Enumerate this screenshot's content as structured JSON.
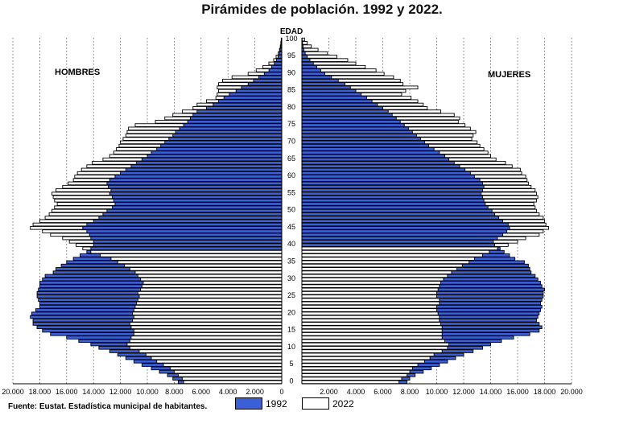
{
  "title": "Pirámides de población. 1992 y 2022.",
  "source": "Fuente: Eustat. Estadística municipal de habitantes.",
  "colors": {
    "series_1992": "#3a5fd6",
    "series_2022": "#ffffff",
    "edge": "#000000",
    "grid": "#555555"
  },
  "chart_data": {
    "type": "bar",
    "orientation": "horizontal-pyramid",
    "title": "Pirámides de población. 1992 y 2022.",
    "age_label": "EDAD",
    "left_label": "HOMBRES",
    "right_label": "MUJERES",
    "ages": [
      0,
      1,
      2,
      3,
      4,
      5,
      6,
      7,
      8,
      9,
      10,
      11,
      12,
      13,
      14,
      15,
      16,
      17,
      18,
      19,
      20,
      21,
      22,
      23,
      24,
      25,
      26,
      27,
      28,
      29,
      30,
      31,
      32,
      33,
      34,
      35,
      36,
      37,
      38,
      39,
      40,
      41,
      42,
      43,
      44,
      45,
      46,
      47,
      48,
      49,
      50,
      51,
      52,
      53,
      54,
      55,
      56,
      57,
      58,
      59,
      60,
      61,
      62,
      63,
      64,
      65,
      66,
      67,
      68,
      69,
      70,
      71,
      72,
      73,
      74,
      75,
      76,
      77,
      78,
      79,
      80,
      81,
      82,
      83,
      84,
      85,
      86,
      87,
      88,
      89,
      90,
      91,
      92,
      93,
      94,
      95,
      96,
      97,
      98,
      99,
      100
    ],
    "age_ticks": [
      0,
      5,
      10,
      15,
      20,
      25,
      30,
      35,
      40,
      45,
      50,
      55,
      60,
      65,
      70,
      75,
      80,
      85,
      90,
      95,
      100
    ],
    "x_ticks": [
      20000,
      18000,
      16000,
      14000,
      12000,
      10000,
      8000,
      6000,
      4000,
      2000,
      0,
      2000,
      4000,
      6000,
      8000,
      10000,
      12000,
      14000,
      16000,
      18000,
      20000
    ],
    "x_tick_labels": [
      "20.000",
      "18.000",
      "16.000",
      "14.000",
      "12.000",
      "10.000",
      "8.000",
      "6.000",
      "4.000",
      "2.000",
      "0",
      "2.000",
      "4.000",
      "6.000",
      "8.000",
      "10.000",
      "12.000",
      "14.000",
      "16.000",
      "18.000",
      "20.000"
    ],
    "xlim": [
      -20000,
      20000
    ],
    "grid": "vertical dotted",
    "series": [
      {
        "name": "1992",
        "men": [
          7700,
          8100,
          8500,
          9100,
          9700,
          10400,
          11000,
          11600,
          12200,
          12800,
          13600,
          14200,
          15100,
          16000,
          17200,
          17800,
          18200,
          18500,
          18500,
          18700,
          18600,
          18300,
          18000,
          18000,
          18100,
          18200,
          18200,
          18100,
          18000,
          18000,
          17800,
          17600,
          17000,
          16800,
          16400,
          16000,
          15500,
          15000,
          14500,
          14200,
          14000,
          14000,
          14200,
          14300,
          14500,
          14800,
          14500,
          14000,
          13600,
          13300,
          13000,
          12600,
          12400,
          12500,
          12600,
          12800,
          12700,
          12900,
          13000,
          12800,
          12400,
          12000,
          11600,
          11200,
          10800,
          10400,
          10000,
          9700,
          9300,
          9000,
          8700,
          8400,
          8100,
          7900,
          7600,
          7300,
          7000,
          6800,
          6600,
          6300,
          5600,
          5100,
          4700,
          4300,
          3900,
          3400,
          3000,
          2500,
          2100,
          1700,
          1300,
          950,
          750,
          550,
          400,
          280,
          180,
          120,
          70,
          40,
          20
        ],
        "women": [
          7800,
          8000,
          8400,
          9000,
          9600,
          10200,
          10800,
          11400,
          12000,
          12700,
          13400,
          14000,
          14800,
          15700,
          16900,
          17600,
          17800,
          17600,
          17400,
          17500,
          17600,
          17700,
          17800,
          17700,
          17800,
          17900,
          17900,
          18000,
          17800,
          17700,
          17500,
          17300,
          17000,
          16900,
          16800,
          16500,
          15800,
          15400,
          15000,
          14700,
          14300,
          14200,
          14500,
          14900,
          15200,
          15400,
          15300,
          14900,
          14600,
          14300,
          14100,
          13800,
          13600,
          13500,
          13400,
          13300,
          13400,
          13500,
          13400,
          13200,
          12800,
          12500,
          12100,
          11700,
          11300,
          10900,
          10600,
          10200,
          9800,
          9400,
          9100,
          8800,
          8500,
          8200,
          7900,
          7600,
          7300,
          7000,
          6700,
          6400,
          6000,
          5600,
          5200,
          4800,
          4400,
          4000,
          3600,
          3200,
          2700,
          2200,
          1700,
          1400,
          1100,
          850,
          600,
          400,
          250,
          150,
          90,
          50,
          20
        ]
      },
      {
        "name": "2022",
        "men": [
          7300,
          7400,
          7700,
          8000,
          8300,
          8800,
          9300,
          9700,
          10100,
          10600,
          11300,
          11500,
          11300,
          11200,
          11000,
          11000,
          11200,
          11300,
          11100,
          11000,
          11100,
          11000,
          10900,
          10800,
          10700,
          10600,
          10700,
          10500,
          10400,
          10300,
          10500,
          10700,
          10900,
          11300,
          11700,
          12200,
          12700,
          13500,
          14200,
          14800,
          15300,
          15800,
          16300,
          17200,
          17800,
          18700,
          18500,
          18000,
          17600,
          17300,
          17100,
          16900,
          16700,
          16900,
          17000,
          17100,
          16800,
          16300,
          15900,
          15500,
          15400,
          15200,
          14900,
          14500,
          14100,
          13300,
          12800,
          12500,
          12300,
          12100,
          12000,
          11800,
          11600,
          11500,
          11400,
          10900,
          9400,
          8700,
          8100,
          7400,
          6600,
          6300,
          5600,
          4900,
          4800,
          4700,
          4800,
          4700,
          4400,
          3700,
          2500,
          1900,
          1400,
          960,
          600,
          420,
          260,
          170,
          110,
          70,
          40
        ],
        "women": [
          7200,
          7400,
          7800,
          8000,
          8200,
          8600,
          9100,
          9500,
          9800,
          10400,
          10800,
          10900,
          10600,
          10400,
          10400,
          10400,
          10400,
          10300,
          10200,
          10200,
          10100,
          10000,
          10000,
          10200,
          10200,
          10000,
          10000,
          10100,
          10200,
          10300,
          10500,
          10800,
          11100,
          11500,
          11900,
          12400,
          12800,
          13400,
          13900,
          14500,
          15300,
          16000,
          16600,
          17600,
          17900,
          18300,
          18100,
          18000,
          17900,
          17600,
          17400,
          17300,
          17200,
          17400,
          17500,
          17400,
          17300,
          17000,
          16800,
          16700,
          16600,
          16300,
          16200,
          15600,
          15100,
          14400,
          14000,
          13800,
          13500,
          13200,
          13000,
          12600,
          12700,
          12900,
          12500,
          12100,
          11600,
          11700,
          11300,
          10300,
          9300,
          9000,
          8600,
          8100,
          7400,
          7700,
          8600,
          7500,
          7300,
          6800,
          6100,
          5500,
          4700,
          4000,
          3400,
          2600,
          1900,
          1200,
          700,
          400,
          200
        ]
      }
    ]
  }
}
